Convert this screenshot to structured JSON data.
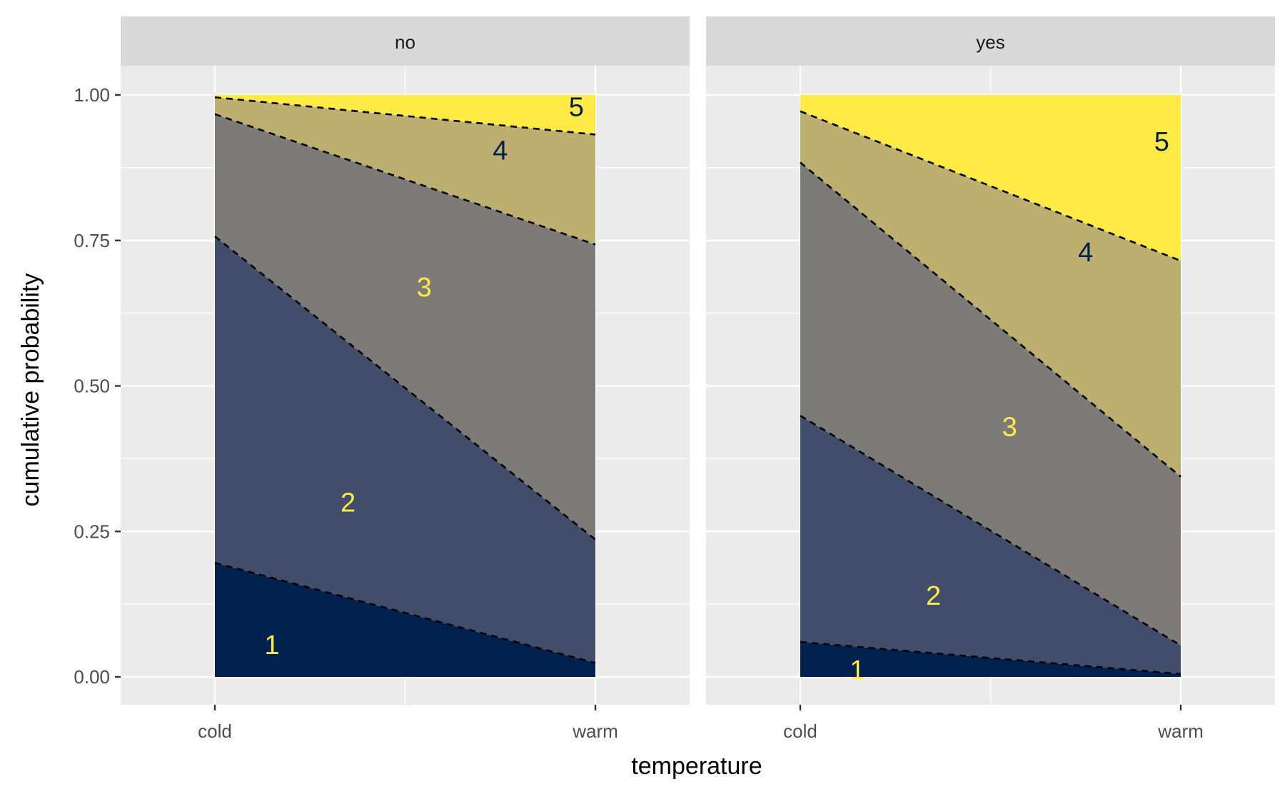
{
  "chart_data": {
    "type": "area",
    "xlabel": "temperature",
    "ylabel": "cumulative probability",
    "x_categories": [
      "cold",
      "warm"
    ],
    "ylim": [
      0,
      1
    ],
    "y_ticks": [
      "0.00",
      "0.25",
      "0.50",
      "0.75",
      "1.00"
    ],
    "grid": true,
    "fill_colors": [
      "#00204D",
      "#414D6B",
      "#7C7B78",
      "#BCAF6F",
      "#FFEA46"
    ],
    "label_colors": [
      "#FFEA46",
      "#FFEA46",
      "#FFEA46",
      "#00204D",
      "#00204D"
    ],
    "panels": [
      {
        "facet": "no",
        "boundaries": [
          {
            "name": "1",
            "cold": 0.196,
            "warm": 0.024
          },
          {
            "name": "2",
            "cold": 0.757,
            "warm": 0.236
          },
          {
            "name": "3",
            "cold": 0.967,
            "warm": 0.743
          },
          {
            "name": "4",
            "cold": 0.996,
            "warm": 0.932
          },
          {
            "name": "5",
            "cold": 1.0,
            "warm": 1.0
          }
        ],
        "labels": [
          {
            "text": "1",
            "x": 0.15,
            "y": 0.055
          },
          {
            "text": "2",
            "x": 0.35,
            "y": 0.3
          },
          {
            "text": "3",
            "x": 0.55,
            "y": 0.67
          },
          {
            "text": "4",
            "x": 0.75,
            "y": 0.905
          },
          {
            "text": "5",
            "x": 0.95,
            "y": 0.98
          }
        ]
      },
      {
        "facet": "yes",
        "boundaries": [
          {
            "name": "1",
            "cold": 0.06,
            "warm": 0.005
          },
          {
            "name": "2",
            "cold": 0.449,
            "warm": 0.054
          },
          {
            "name": "3",
            "cold": 0.884,
            "warm": 0.344
          },
          {
            "name": "4",
            "cold": 0.972,
            "warm": 0.715
          },
          {
            "name": "5",
            "cold": 1.0,
            "warm": 1.0
          }
        ],
        "labels": [
          {
            "text": "1",
            "x": 0.15,
            "y": 0.012
          },
          {
            "text": "2",
            "x": 0.35,
            "y": 0.14
          },
          {
            "text": "3",
            "x": 0.55,
            "y": 0.43
          },
          {
            "text": "4",
            "x": 0.75,
            "y": 0.73
          },
          {
            "text": "5",
            "x": 0.95,
            "y": 0.92
          }
        ]
      }
    ]
  }
}
